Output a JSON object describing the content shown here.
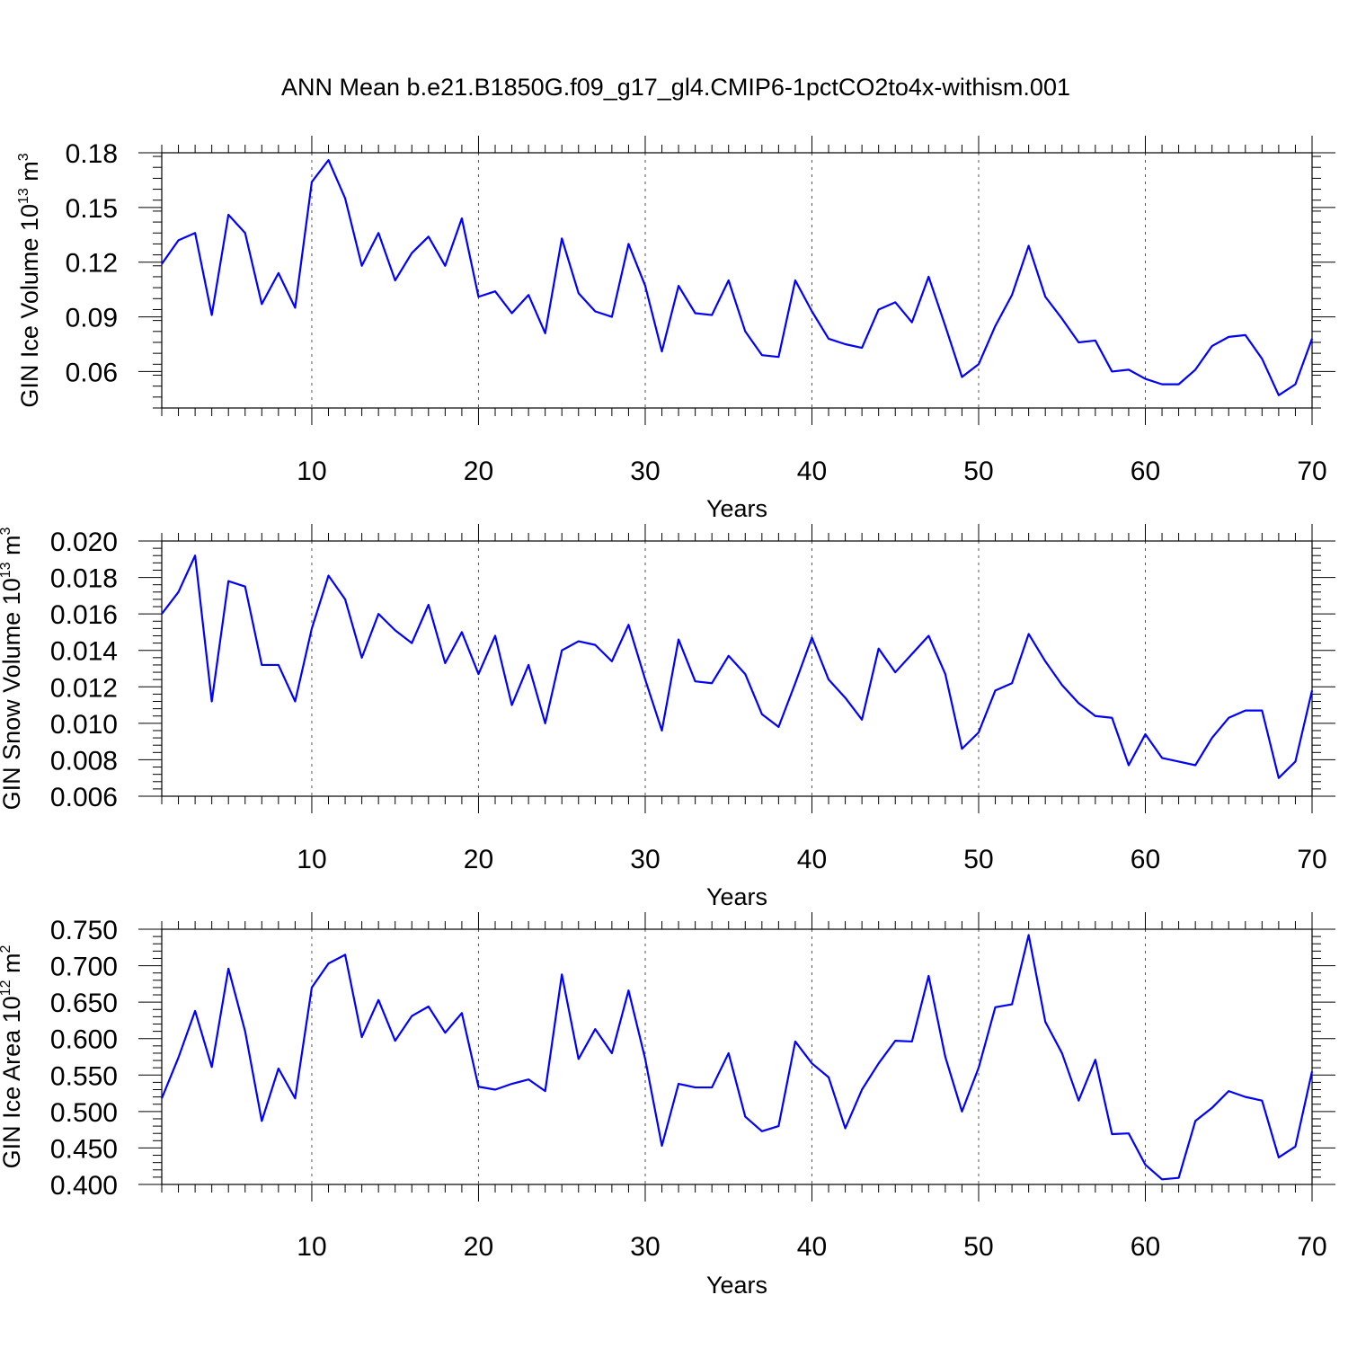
{
  "title": "ANN Mean b.e21.B1850G.f09_g17_gl4.CMIP6-1pctCO2to4x-withism.001",
  "chart_data": [
    {
      "type": "line",
      "ylabel_main": "GIN Ice Volume 10",
      "ylabel_exp": "13",
      "ylabel_unit": " m",
      "ylabel_unit_exp": "3",
      "xlabel": "Years",
      "xlim": [
        1,
        70
      ],
      "ylim": [
        0.04,
        0.18
      ],
      "x_ticks": [
        10,
        20,
        30,
        40,
        50,
        60,
        70
      ],
      "x_tick_labels": [
        "10",
        "20",
        "30",
        "40",
        "50",
        "60",
        "70"
      ],
      "y_ticks": [
        0.06,
        0.09,
        0.12,
        0.15,
        0.18
      ],
      "y_tick_labels": [
        "0.06",
        "0.09",
        "0.12",
        "0.15",
        "0.18"
      ],
      "y_minor_step": 0.006,
      "series": [
        {
          "name": "GIN Ice Volume",
          "color": "#0000ff",
          "values": [
            0.119,
            0.132,
            0.136,
            0.091,
            0.146,
            0.136,
            0.097,
            0.114,
            0.095,
            0.164,
            0.176,
            0.155,
            0.118,
            0.136,
            0.11,
            0.125,
            0.134,
            0.118,
            0.144,
            0.101,
            0.104,
            0.092,
            0.102,
            0.081,
            0.133,
            0.103,
            0.093,
            0.09,
            0.13,
            0.107,
            0.071,
            0.107,
            0.092,
            0.091,
            0.11,
            0.082,
            0.069,
            0.068,
            0.11,
            0.093,
            0.078,
            0.075,
            0.073,
            0.094,
            0.098,
            0.087,
            0.112,
            0.085,
            0.057,
            0.064,
            0.085,
            0.102,
            0.129,
            0.101,
            0.089,
            0.076,
            0.077,
            0.06,
            0.061,
            0.056,
            0.053,
            0.053,
            0.061,
            0.074,
            0.079,
            0.08,
            0.067,
            0.047,
            0.053,
            0.078
          ]
        }
      ]
    },
    {
      "type": "line",
      "ylabel_main": "GIN Snow Volume 10",
      "ylabel_exp": "13",
      "ylabel_unit": " m",
      "ylabel_unit_exp": "3",
      "xlabel": "Years",
      "xlim": [
        1,
        70
      ],
      "ylim": [
        0.006,
        0.02
      ],
      "x_ticks": [
        10,
        20,
        30,
        40,
        50,
        60,
        70
      ],
      "x_tick_labels": [
        "10",
        "20",
        "30",
        "40",
        "50",
        "60",
        "70"
      ],
      "y_ticks": [
        0.006,
        0.008,
        0.01,
        0.012,
        0.014,
        0.016,
        0.018,
        0.02
      ],
      "y_tick_labels": [
        "0.006",
        "0.008",
        "0.010",
        "0.012",
        "0.014",
        "0.016",
        "0.018",
        "0.020"
      ],
      "y_minor_step": 0.0004,
      "series": [
        {
          "name": "GIN Snow Volume",
          "color": "#0000ff",
          "values": [
            0.016,
            0.0172,
            0.0192,
            0.0112,
            0.0178,
            0.0175,
            0.0132,
            0.0132,
            0.0112,
            0.0152,
            0.0181,
            0.0168,
            0.0136,
            0.016,
            0.0151,
            0.0144,
            0.0165,
            0.0133,
            0.015,
            0.0127,
            0.0148,
            0.011,
            0.0132,
            0.01,
            0.014,
            0.0145,
            0.0143,
            0.0134,
            0.0154,
            0.0124,
            0.0096,
            0.0146,
            0.0123,
            0.0122,
            0.0137,
            0.0127,
            0.0105,
            0.0098,
            0.0122,
            0.0147,
            0.0124,
            0.0114,
            0.0102,
            0.0141,
            0.0128,
            0.0138,
            0.0148,
            0.0127,
            0.0086,
            0.0095,
            0.0118,
            0.0122,
            0.0149,
            0.0134,
            0.0121,
            0.0111,
            0.0104,
            0.0103,
            0.0077,
            0.0094,
            0.0081,
            0.0079,
            0.0077,
            0.0092,
            0.0103,
            0.0107,
            0.0107,
            0.007,
            0.0079,
            0.0118
          ]
        }
      ]
    },
    {
      "type": "line",
      "ylabel_main": "GIN Ice Area 10",
      "ylabel_exp": "12",
      "ylabel_unit": " m",
      "ylabel_unit_exp": "2",
      "xlabel": "Years",
      "xlim": [
        1,
        70
      ],
      "ylim": [
        0.4,
        0.75
      ],
      "x_ticks": [
        10,
        20,
        30,
        40,
        50,
        60,
        70
      ],
      "x_tick_labels": [
        "10",
        "20",
        "30",
        "40",
        "50",
        "60",
        "70"
      ],
      "y_ticks": [
        0.4,
        0.45,
        0.5,
        0.55,
        0.6,
        0.65,
        0.7,
        0.75
      ],
      "y_tick_labels": [
        "0.400",
        "0.450",
        "0.500",
        "0.550",
        "0.600",
        "0.650",
        "0.700",
        "0.750"
      ],
      "y_minor_step": 0.01,
      "series": [
        {
          "name": "GIN Ice Area",
          "color": "#0000ff",
          "values": [
            0.518,
            0.574,
            0.638,
            0.561,
            0.696,
            0.61,
            0.487,
            0.559,
            0.518,
            0.67,
            0.703,
            0.715,
            0.602,
            0.653,
            0.597,
            0.631,
            0.644,
            0.608,
            0.635,
            0.534,
            0.53,
            0.538,
            0.544,
            0.528,
            0.688,
            0.572,
            0.613,
            0.58,
            0.666,
            0.572,
            0.453,
            0.538,
            0.533,
            0.533,
            0.58,
            0.493,
            0.473,
            0.48,
            0.596,
            0.566,
            0.547,
            0.477,
            0.53,
            0.566,
            0.597,
            0.596,
            0.686,
            0.575,
            0.5,
            0.56,
            0.643,
            0.647,
            0.742,
            0.623,
            0.58,
            0.515,
            0.571,
            0.469,
            0.47,
            0.427,
            0.407,
            0.409,
            0.487,
            0.505,
            0.528,
            0.52,
            0.515,
            0.437,
            0.452,
            0.555
          ]
        }
      ]
    }
  ]
}
